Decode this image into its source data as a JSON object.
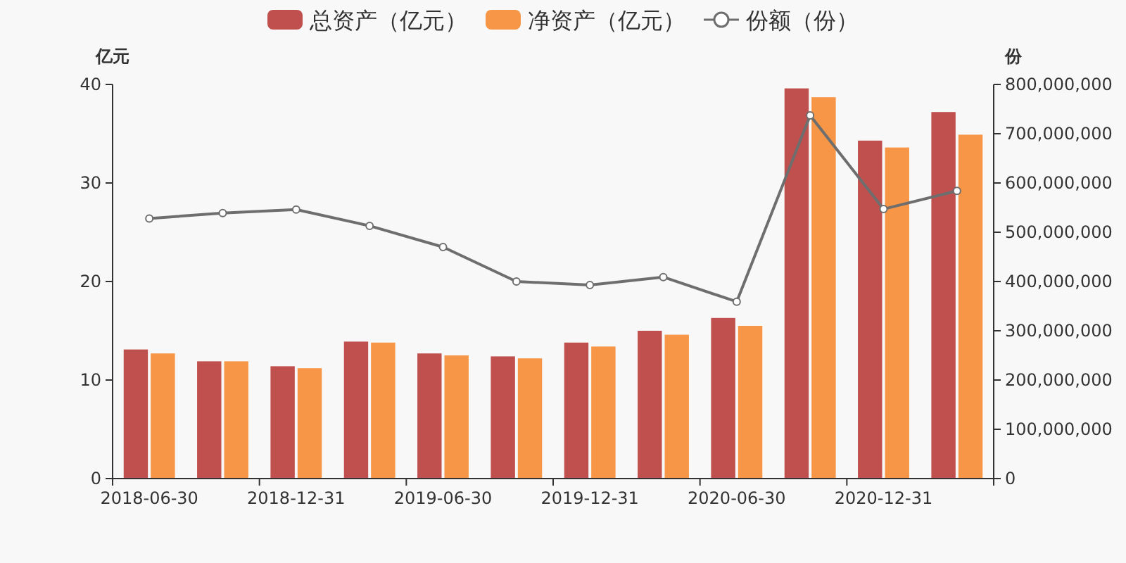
{
  "chart_data": {
    "type": "bar",
    "categories": [
      "2018-06-30",
      null,
      "2018-12-31",
      null,
      "2019-06-30",
      null,
      "2019-12-31",
      null,
      "2020-06-30",
      null,
      "2020-12-31",
      null
    ],
    "series": [
      {
        "name": "总资产（亿元）",
        "color": "#c0504d",
        "values": [
          13.1,
          11.9,
          11.4,
          13.9,
          12.7,
          12.4,
          13.8,
          15.0,
          16.3,
          39.6,
          34.3,
          37.2
        ]
      },
      {
        "name": "净资产（亿元）",
        "color": "#f79646",
        "values": [
          12.7,
          11.9,
          11.2,
          13.8,
          12.5,
          12.2,
          13.4,
          14.6,
          15.5,
          38.7,
          33.6,
          34.9
        ]
      },
      {
        "name": "份额（份）",
        "type": "line",
        "axis": "y2",
        "color": "#6e6e6e",
        "marker": "circle",
        "values": [
          528000000,
          539000000,
          546000000,
          513000000,
          470000000,
          400000000,
          393000000,
          409000000,
          359000000,
          737000000,
          547000000,
          584000000
        ]
      }
    ],
    "ylabel": "亿元",
    "y2label": "份",
    "ylim": [
      0,
      40
    ],
    "yticks": [
      0,
      10,
      20,
      30,
      40
    ],
    "y2lim": [
      0,
      800000000
    ],
    "y2ticks": [
      0,
      {
        "value": 100000000,
        "label": "100,000,000"
      },
      {
        "value": 200000000,
        "label": "200,000,000"
      },
      {
        "value": 300000000,
        "label": "300,000,000"
      },
      {
        "value": 400000000,
        "label": "400,000,000"
      },
      {
        "value": 500000000,
        "label": "500,000,000"
      },
      {
        "value": 600000000,
        "label": "600,000,000"
      },
      {
        "value": 700000000,
        "label": "700,000,000"
      },
      {
        "value": 800000000,
        "label": "800,000,000"
      }
    ],
    "legend": "top",
    "grid": false
  }
}
